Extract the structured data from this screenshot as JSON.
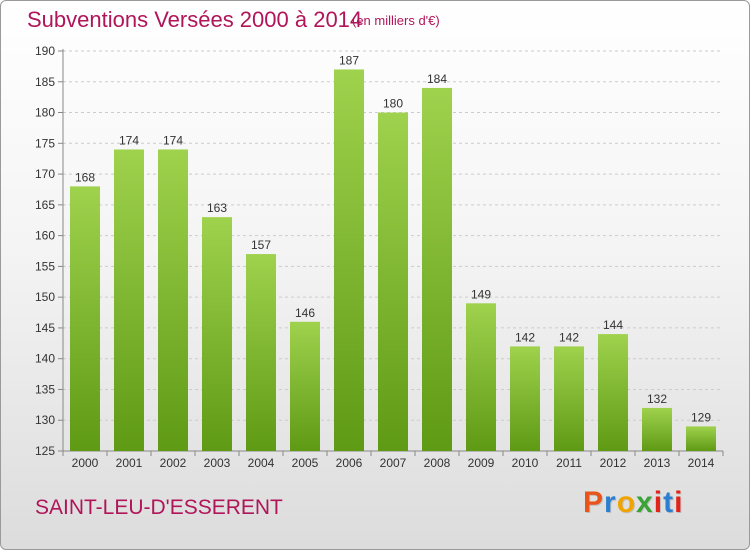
{
  "header": {
    "title": "Subventions Versées 2000 à 2014",
    "subtitle": "(en milliers d'€)"
  },
  "footer": {
    "commune": "SAINT-LEU-D'ESSERENT",
    "logo_text": "Proxiti",
    "logo_colors": [
      "#e8541a",
      "#2a7fd0",
      "#f0a400",
      "#3aa335",
      "#e2231a",
      "#2a7fd0",
      "#e2231a"
    ]
  },
  "colors": {
    "bar_top": "#9fd24d",
    "bar_bottom": "#5f9a15",
    "grid": "#cccccc",
    "axis": "#888888",
    "accent": "#b0155a"
  },
  "chart_data": {
    "type": "bar",
    "title": "Subventions Versées 2000 à 2014",
    "subtitle": "(en milliers d'€)",
    "categories": [
      "2000",
      "2001",
      "2002",
      "2003",
      "2004",
      "2005",
      "2006",
      "2007",
      "2008",
      "2009",
      "2010",
      "2011",
      "2012",
      "2013",
      "2014"
    ],
    "values": [
      168,
      174,
      174,
      163,
      157,
      146,
      187,
      180,
      184,
      149,
      142,
      142,
      144,
      132,
      129
    ],
    "ylim": [
      125,
      190
    ],
    "yticks": [
      125,
      130,
      135,
      140,
      145,
      150,
      155,
      160,
      165,
      170,
      175,
      180,
      185,
      190
    ],
    "grid": true,
    "legend": "none"
  }
}
